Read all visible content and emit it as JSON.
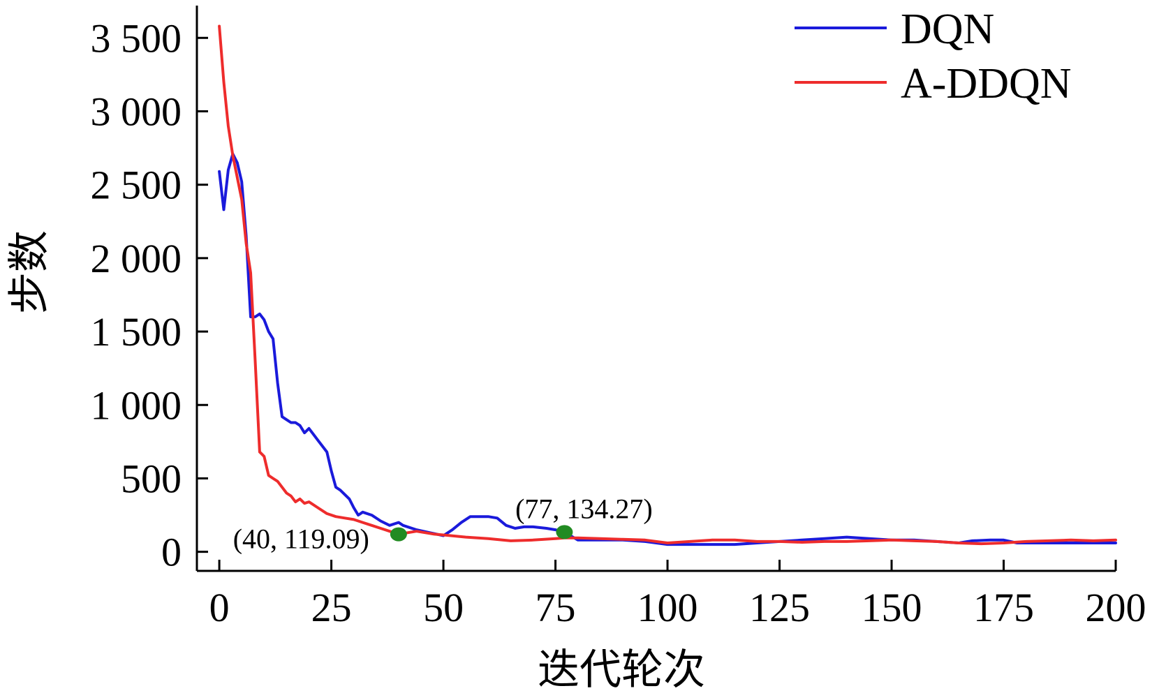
{
  "chart_data": {
    "type": "line",
    "xlabel": "迭代轮次",
    "ylabel": "步数",
    "xlim": [
      -5,
      200
    ],
    "ylim": [
      -130,
      3720
    ],
    "x_ticks": [
      0,
      25,
      50,
      75,
      100,
      125,
      150,
      175,
      200
    ],
    "x_tick_labels": [
      "0",
      "25",
      "50",
      "75",
      "100",
      "125",
      "150",
      "175",
      "200"
    ],
    "y_ticks": [
      0,
      500,
      1000,
      1500,
      2000,
      2500,
      3000,
      3500
    ],
    "y_tick_labels": [
      "0",
      "500",
      "1 000",
      "1 500",
      "2 000",
      "2 500",
      "3 000",
      "3 500"
    ],
    "legend_position": "top-right",
    "series": [
      {
        "name": "DQN",
        "color": "#1a1adb",
        "points": [
          [
            0,
            2590
          ],
          [
            1,
            2330
          ],
          [
            2,
            2600
          ],
          [
            3,
            2710
          ],
          [
            4,
            2650
          ],
          [
            5,
            2520
          ],
          [
            6,
            2150
          ],
          [
            7,
            1600
          ],
          [
            8,
            1600
          ],
          [
            9,
            1620
          ],
          [
            10,
            1580
          ],
          [
            11,
            1500
          ],
          [
            12,
            1450
          ],
          [
            13,
            1150
          ],
          [
            14,
            920
          ],
          [
            15,
            900
          ],
          [
            16,
            880
          ],
          [
            17,
            880
          ],
          [
            18,
            860
          ],
          [
            19,
            810
          ],
          [
            20,
            840
          ],
          [
            21,
            800
          ],
          [
            22,
            760
          ],
          [
            24,
            680
          ],
          [
            25,
            550
          ],
          [
            26,
            440
          ],
          [
            27,
            420
          ],
          [
            29,
            360
          ],
          [
            30,
            300
          ],
          [
            31,
            250
          ],
          [
            32,
            270
          ],
          [
            34,
            250
          ],
          [
            36,
            210
          ],
          [
            38,
            180
          ],
          [
            40,
            200
          ],
          [
            41,
            180
          ],
          [
            44,
            150
          ],
          [
            47,
            130
          ],
          [
            50,
            110
          ],
          [
            52,
            150
          ],
          [
            54,
            200
          ],
          [
            56,
            240
          ],
          [
            58,
            240
          ],
          [
            60,
            240
          ],
          [
            62,
            230
          ],
          [
            64,
            180
          ],
          [
            66,
            160
          ],
          [
            68,
            170
          ],
          [
            70,
            170
          ],
          [
            73,
            160
          ],
          [
            75,
            150
          ],
          [
            77,
            134.27
          ],
          [
            80,
            80
          ],
          [
            85,
            80
          ],
          [
            90,
            80
          ],
          [
            95,
            70
          ],
          [
            100,
            50
          ],
          [
            105,
            50
          ],
          [
            110,
            50
          ],
          [
            115,
            50
          ],
          [
            120,
            60
          ],
          [
            125,
            70
          ],
          [
            130,
            80
          ],
          [
            135,
            90
          ],
          [
            140,
            100
          ],
          [
            145,
            90
          ],
          [
            150,
            80
          ],
          [
            155,
            80
          ],
          [
            160,
            70
          ],
          [
            165,
            60
          ],
          [
            168,
            75
          ],
          [
            172,
            80
          ],
          [
            175,
            80
          ],
          [
            178,
            60
          ],
          [
            185,
            60
          ],
          [
            190,
            60
          ],
          [
            195,
            60
          ],
          [
            200,
            60
          ]
        ]
      },
      {
        "name": "A-DDQN",
        "color": "#ee2c2c",
        "points": [
          [
            0,
            3580
          ],
          [
            1,
            3200
          ],
          [
            2,
            2900
          ],
          [
            3,
            2700
          ],
          [
            4,
            2550
          ],
          [
            5,
            2400
          ],
          [
            6,
            2100
          ],
          [
            7,
            1900
          ],
          [
            8,
            1300
          ],
          [
            9,
            680
          ],
          [
            10,
            650
          ],
          [
            11,
            520
          ],
          [
            12,
            500
          ],
          [
            13,
            480
          ],
          [
            14,
            440
          ],
          [
            15,
            400
          ],
          [
            16,
            380
          ],
          [
            17,
            340
          ],
          [
            18,
            360
          ],
          [
            19,
            330
          ],
          [
            20,
            340
          ],
          [
            22,
            300
          ],
          [
            24,
            260
          ],
          [
            26,
            240
          ],
          [
            28,
            230
          ],
          [
            30,
            220
          ],
          [
            32,
            200
          ],
          [
            34,
            180
          ],
          [
            36,
            160
          ],
          [
            38,
            140
          ],
          [
            40,
            119.09
          ],
          [
            42,
            130
          ],
          [
            44,
            140
          ],
          [
            46,
            130
          ],
          [
            48,
            120
          ],
          [
            50,
            115
          ],
          [
            55,
            100
          ],
          [
            60,
            90
          ],
          [
            65,
            75
          ],
          [
            70,
            80
          ],
          [
            75,
            90
          ],
          [
            77,
            95
          ],
          [
            80,
            95
          ],
          [
            85,
            90
          ],
          [
            90,
            85
          ],
          [
            95,
            80
          ],
          [
            100,
            60
          ],
          [
            105,
            70
          ],
          [
            110,
            80
          ],
          [
            115,
            80
          ],
          [
            120,
            70
          ],
          [
            125,
            70
          ],
          [
            130,
            65
          ],
          [
            135,
            70
          ],
          [
            140,
            70
          ],
          [
            145,
            75
          ],
          [
            150,
            80
          ],
          [
            155,
            75
          ],
          [
            160,
            70
          ],
          [
            165,
            60
          ],
          [
            170,
            55
          ],
          [
            175,
            60
          ],
          [
            180,
            70
          ],
          [
            185,
            75
          ],
          [
            190,
            80
          ],
          [
            195,
            75
          ],
          [
            200,
            80
          ]
        ]
      }
    ],
    "markers": [
      {
        "x": 40,
        "y": 119.09,
        "color": "#228b22",
        "label": "(40, 119.09)"
      },
      {
        "x": 77,
        "y": 134.27,
        "color": "#228b22",
        "label": "(77, 134.27)"
      }
    ]
  }
}
